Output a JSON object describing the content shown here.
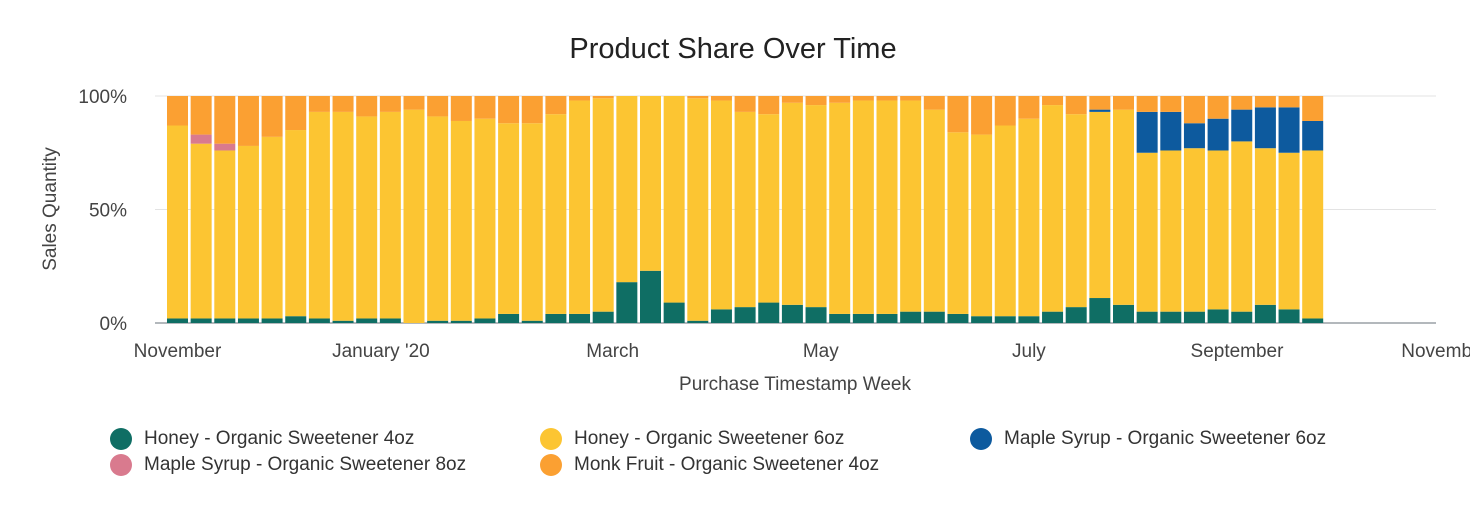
{
  "chart_data": {
    "type": "bar",
    "stacked": "percent",
    "title": "Product Share Over Time",
    "xlabel": "Purchase Timestamp Week",
    "ylabel": "Sales Quantity",
    "ylim": [
      0,
      100
    ],
    "y_ticks": [
      "0%",
      "50%",
      "100%"
    ],
    "x_tick_labels": [
      "November",
      "January '20",
      "March",
      "May",
      "July",
      "September",
      "November"
    ],
    "x_tick_week_index": [
      0,
      8.6,
      18.4,
      27.2,
      36,
      44.8,
      53.6
    ],
    "grid": true,
    "legend_position": "bottom",
    "series": [
      {
        "name": "Honey - Organic Sweetener 4oz",
        "color": "#0f6e64",
        "values": [
          2,
          2,
          2,
          2,
          2,
          3,
          2,
          1,
          2,
          2,
          0,
          1,
          1,
          2,
          4,
          1,
          4,
          4,
          5,
          18,
          23,
          9,
          1,
          6,
          7,
          9,
          8,
          7,
          4,
          4,
          4,
          5,
          5,
          4,
          3,
          3,
          3,
          5,
          7,
          11,
          8,
          5,
          5,
          5,
          6,
          5,
          8,
          6,
          2
        ]
      },
      {
        "name": "Honey - Organic Sweetener 6oz",
        "color": "#fcc532",
        "values": [
          85,
          77,
          74,
          76,
          80,
          82,
          91,
          92,
          89,
          91,
          94,
          90,
          88,
          88,
          84,
          87,
          88,
          94,
          94,
          82,
          77,
          91,
          98,
          92,
          86,
          83,
          89,
          89,
          93,
          94,
          94,
          93,
          89,
          80,
          80,
          84,
          87,
          91,
          85,
          82,
          86,
          70,
          71,
          72,
          70,
          75,
          69,
          69,
          74
        ]
      },
      {
        "name": "Maple Syrup - Organic Sweetener 6oz",
        "color": "#0d5a9e",
        "values": [
          0,
          0,
          0,
          0,
          0,
          0,
          0,
          0,
          0,
          0,
          0,
          0,
          0,
          0,
          0,
          0,
          0,
          0,
          0,
          0,
          0,
          0,
          0,
          0,
          0,
          0,
          0,
          0,
          0,
          0,
          0,
          0,
          0,
          0,
          0,
          0,
          0,
          0,
          0,
          1,
          0,
          18,
          17,
          11,
          14,
          14,
          18,
          20,
          13
        ]
      },
      {
        "name": "Maple Syrup - Organic Sweetener 8oz",
        "color": "#d97a8e",
        "values": [
          0,
          4,
          3,
          0,
          0,
          0,
          0,
          0,
          0,
          0,
          0,
          0,
          0,
          0,
          0,
          0,
          0,
          0,
          0,
          0,
          0,
          0,
          0,
          0,
          0,
          0,
          0,
          0,
          0,
          0,
          0,
          0,
          0,
          0,
          0,
          0,
          0,
          0,
          0,
          0,
          0,
          0,
          0,
          0,
          0,
          0,
          0,
          0,
          0
        ]
      },
      {
        "name": "Monk Fruit - Organic Sweetener 4oz",
        "color": "#fba032",
        "values": [
          13,
          17,
          21,
          22,
          18,
          15,
          7,
          7,
          9,
          7,
          6,
          9,
          11,
          10,
          12,
          12,
          8,
          2,
          1,
          0,
          0,
          0,
          1,
          2,
          7,
          8,
          3,
          4,
          3,
          2,
          2,
          2,
          6,
          16,
          17,
          13,
          10,
          4,
          8,
          6,
          6,
          7,
          7,
          12,
          10,
          6,
          5,
          5,
          11
        ]
      }
    ]
  }
}
